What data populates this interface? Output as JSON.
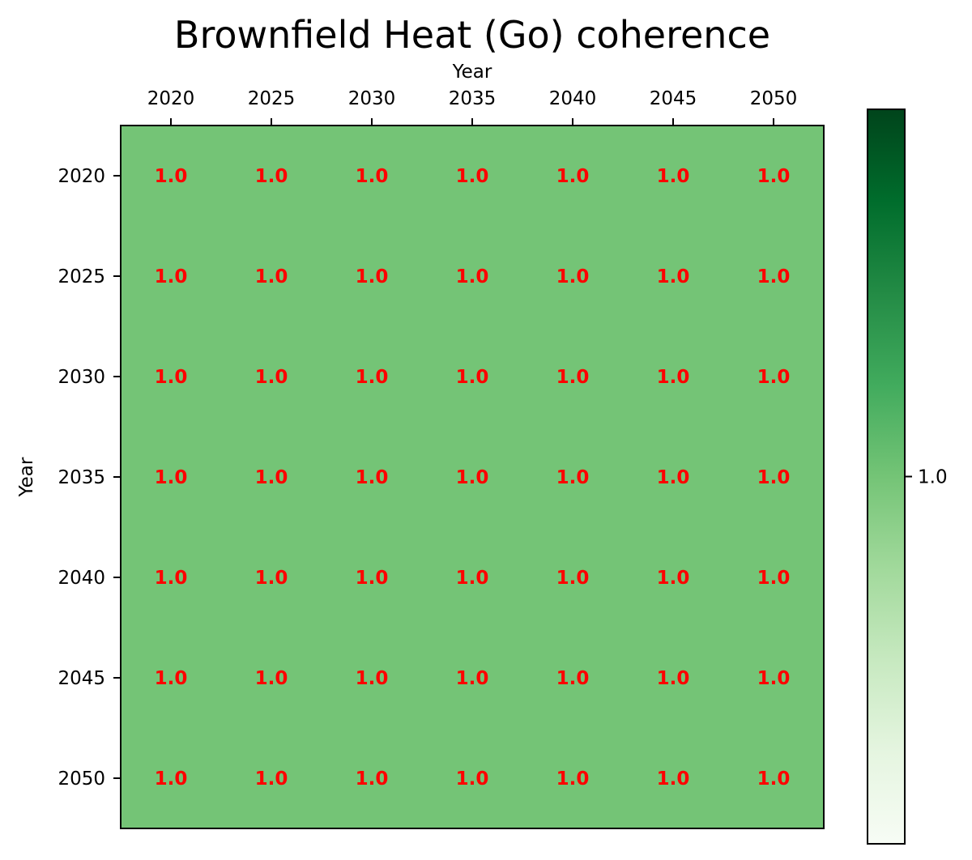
{
  "chart_data": {
    "type": "heatmap",
    "title": "Brownfield Heat (Go) coherence",
    "xlabel": "Year",
    "ylabel": "Year",
    "x_categories": [
      "2020",
      "2025",
      "2030",
      "2035",
      "2040",
      "2045",
      "2050"
    ],
    "y_categories": [
      "2020",
      "2025",
      "2030",
      "2035",
      "2040",
      "2045",
      "2050"
    ],
    "values": [
      [
        1.0,
        1.0,
        1.0,
        1.0,
        1.0,
        1.0,
        1.0
      ],
      [
        1.0,
        1.0,
        1.0,
        1.0,
        1.0,
        1.0,
        1.0
      ],
      [
        1.0,
        1.0,
        1.0,
        1.0,
        1.0,
        1.0,
        1.0
      ],
      [
        1.0,
        1.0,
        1.0,
        1.0,
        1.0,
        1.0,
        1.0
      ],
      [
        1.0,
        1.0,
        1.0,
        1.0,
        1.0,
        1.0,
        1.0
      ],
      [
        1.0,
        1.0,
        1.0,
        1.0,
        1.0,
        1.0,
        1.0
      ],
      [
        1.0,
        1.0,
        1.0,
        1.0,
        1.0,
        1.0,
        1.0
      ]
    ],
    "cell_labels": [
      [
        "1.0",
        "1.0",
        "1.0",
        "1.0",
        "1.0",
        "1.0",
        "1.0"
      ],
      [
        "1.0",
        "1.0",
        "1.0",
        "1.0",
        "1.0",
        "1.0",
        "1.0"
      ],
      [
        "1.0",
        "1.0",
        "1.0",
        "1.0",
        "1.0",
        "1.0",
        "1.0"
      ],
      [
        "1.0",
        "1.0",
        "1.0",
        "1.0",
        "1.0",
        "1.0",
        "1.0"
      ],
      [
        "1.0",
        "1.0",
        "1.0",
        "1.0",
        "1.0",
        "1.0",
        "1.0"
      ],
      [
        "1.0",
        "1.0",
        "1.0",
        "1.0",
        "1.0",
        "1.0",
        "1.0"
      ],
      [
        "1.0",
        "1.0",
        "1.0",
        "1.0",
        "1.0",
        "1.0",
        "1.0"
      ]
    ],
    "x_axis_position": "top",
    "colormap": "Greens",
    "colorbar": {
      "ticks": [
        1.0
      ],
      "tick_labels": [
        "1.0"
      ],
      "range": [
        0.5,
        1.5
      ],
      "stops": [
        "#f7fcf5",
        "#e5f5e0",
        "#c7e9c0",
        "#a1d99b",
        "#74c476",
        "#41ab5d",
        "#238b45",
        "#006d2c",
        "#00441b"
      ]
    },
    "cell_color": "#74c476",
    "annotation_color": "#ff0000",
    "grid": false,
    "legend": "none"
  }
}
